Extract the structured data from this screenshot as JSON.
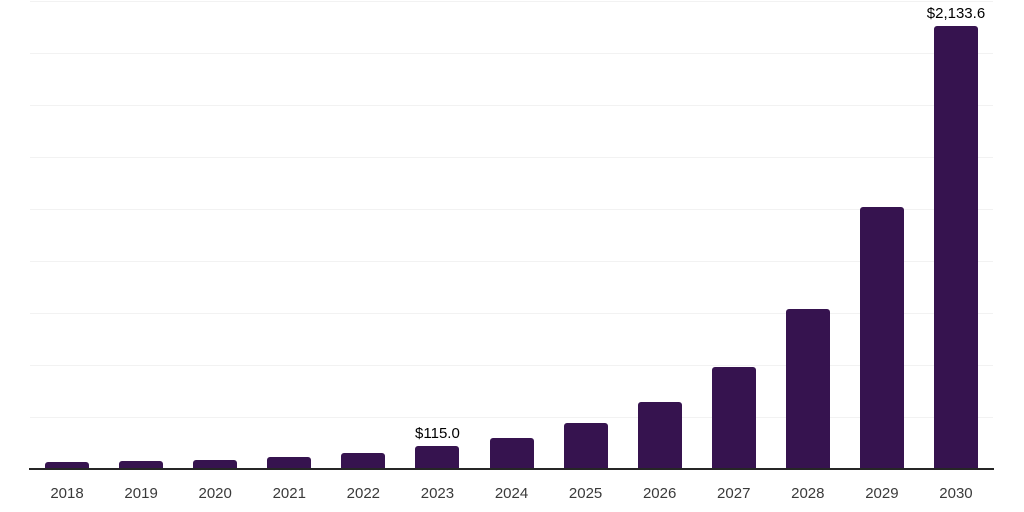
{
  "chart_data": {
    "type": "bar",
    "title": "",
    "xlabel": "",
    "ylabel": "",
    "categories": [
      "2018",
      "2019",
      "2020",
      "2021",
      "2022",
      "2023",
      "2024",
      "2025",
      "2026",
      "2027",
      "2028",
      "2029",
      "2030"
    ],
    "values": [
      38,
      42,
      50,
      65,
      80,
      115.0,
      155,
      227,
      325,
      497,
      774,
      1265,
      2133.6
    ],
    "value_labels": [
      {
        "index": 5,
        "category": "2023",
        "text": "$115.0"
      },
      {
        "index": 12,
        "category": "2030",
        "text": "$2,133.6"
      }
    ],
    "ylim": [
      0,
      2250
    ],
    "gridline_step": 250,
    "grid": true,
    "legend": false,
    "y_axis_tick_labels_visible": false,
    "colors": {
      "bar": "#36134F",
      "gridline": "#f2f2f2",
      "axis_line": "#262626",
      "tick_label": "#3a3a3a",
      "value_label": "#000000",
      "background": "#ffffff"
    }
  }
}
